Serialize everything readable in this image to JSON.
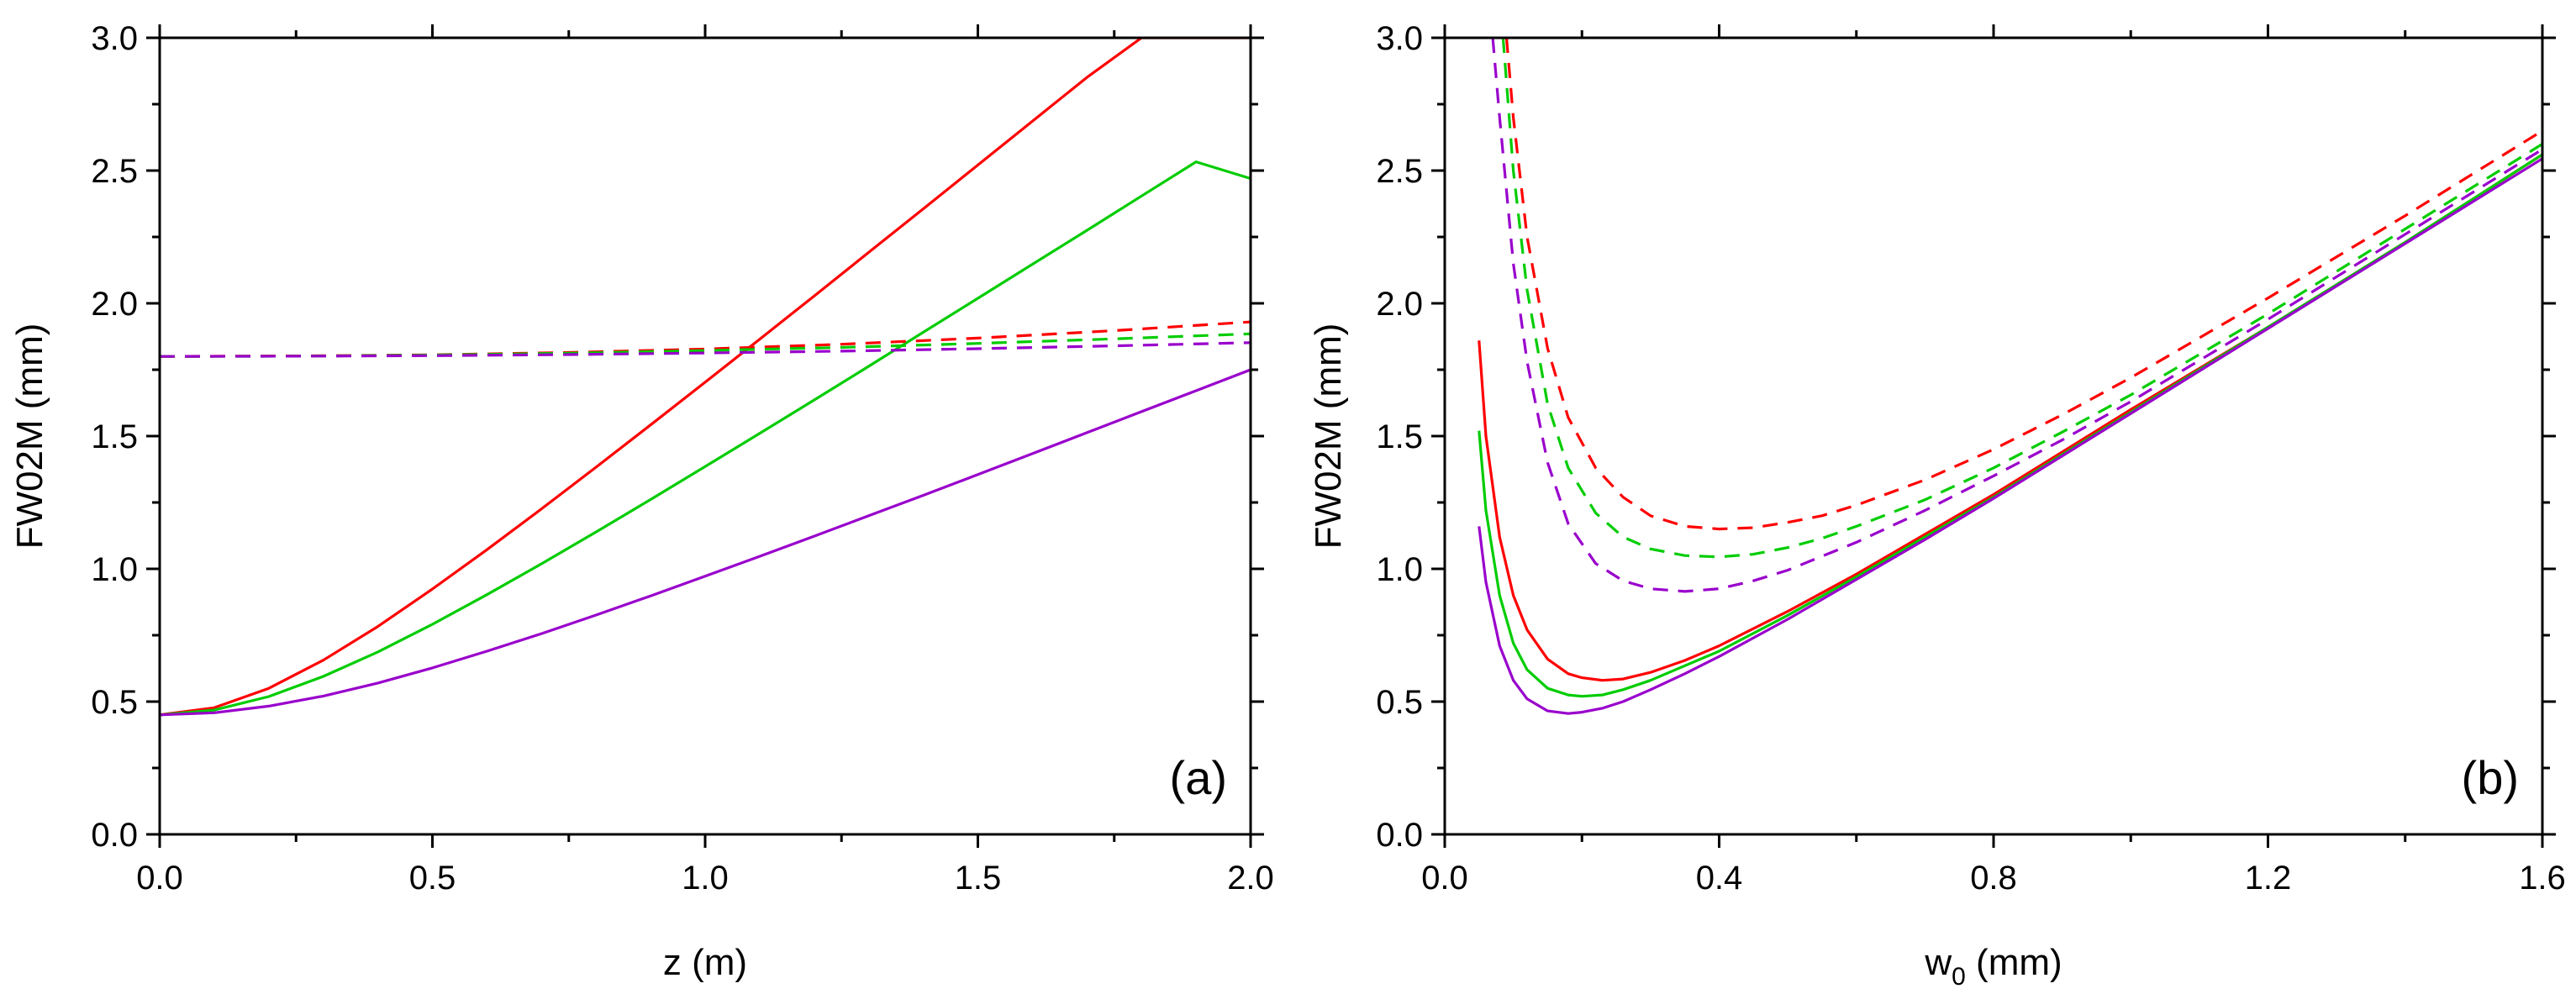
{
  "chart_data": [
    {
      "panel": "(a)",
      "type": "line",
      "xlabel": "z (m)",
      "ylabel": "FW02M (mm)",
      "xlim": [
        0,
        2.0
      ],
      "ylim": [
        0,
        3.0
      ],
      "xticks": [
        0,
        0.5,
        1.0,
        1.5,
        2.0
      ],
      "xtick_labels": [
        "0.0",
        "0.5",
        "1.0",
        "1.5",
        "2.0"
      ],
      "xminor": 0.25,
      "yticks": [
        0,
        0.5,
        1.0,
        1.5,
        2.0,
        2.5,
        3.0
      ],
      "ytick_labels": [
        "0.0",
        "0.5",
        "1.0",
        "1.5",
        "2.0",
        "2.5",
        "3.0"
      ],
      "yminor": 0.25,
      "series": [
        {
          "name": "red solid",
          "color": "#ff0000",
          "dash": "solid",
          "x": [
            0,
            0.1,
            0.2,
            0.3,
            0.4,
            0.5,
            0.6,
            0.7,
            0.8,
            0.9,
            1.0,
            1.1,
            1.2,
            1.3,
            1.4,
            1.5,
            1.6,
            1.7,
            1.8,
            1.9,
            2.0
          ],
          "y": [
            0.45,
            0.477,
            0.55,
            0.656,
            0.783,
            0.924,
            1.072,
            1.226,
            1.383,
            1.542,
            1.703,
            1.865,
            2.028,
            2.192,
            2.356,
            2.521,
            2.686,
            2.851,
            3.0,
            3.0,
            3.0
          ]
        },
        {
          "name": "green solid",
          "color": "#00cc00",
          "dash": "solid",
          "x": [
            0,
            0.1,
            0.2,
            0.3,
            0.4,
            0.5,
            0.6,
            0.7,
            0.8,
            0.9,
            1.0,
            1.1,
            1.2,
            1.3,
            1.4,
            1.5,
            1.6,
            1.7,
            1.8,
            1.9,
            2.0
          ],
          "y": [
            0.45,
            0.468,
            0.519,
            0.595,
            0.687,
            0.791,
            0.903,
            1.019,
            1.139,
            1.261,
            1.385,
            1.51,
            1.636,
            1.763,
            1.891,
            2.019,
            2.147,
            2.275,
            2.404,
            2.533,
            2.47
          ]
        },
        {
          "name": "purple solid",
          "color": "#9900cc",
          "dash": "solid",
          "x": [
            0,
            0.1,
            0.2,
            0.3,
            0.4,
            0.5,
            0.6,
            0.7,
            0.8,
            0.9,
            1.0,
            1.1,
            1.2,
            1.3,
            1.4,
            1.5,
            1.6,
            1.7,
            1.8,
            1.9,
            2.0
          ],
          "y": [
            0.45,
            0.458,
            0.483,
            0.521,
            0.57,
            0.627,
            0.69,
            0.756,
            0.826,
            0.898,
            0.972,
            1.047,
            1.123,
            1.2,
            1.277,
            1.355,
            1.434,
            1.513,
            1.592,
            1.671,
            1.75
          ]
        },
        {
          "name": "red dashed",
          "color": "#ff0000",
          "dash": "dashed",
          "x": [
            0,
            0.25,
            0.5,
            0.75,
            1.0,
            1.25,
            1.5,
            1.75,
            2.0
          ],
          "y": [
            1.8,
            1.802,
            1.806,
            1.815,
            1.828,
            1.846,
            1.869,
            1.897,
            1.93
          ]
        },
        {
          "name": "green dashed",
          "color": "#00cc00",
          "dash": "dashed",
          "x": [
            0,
            0.25,
            0.5,
            0.75,
            1.0,
            1.25,
            1.5,
            1.75,
            2.0
          ],
          "y": [
            1.8,
            1.801,
            1.805,
            1.812,
            1.822,
            1.834,
            1.849,
            1.866,
            1.885
          ]
        },
        {
          "name": "purple dashed",
          "color": "#9900cc",
          "dash": "dashed",
          "x": [
            0,
            0.25,
            0.5,
            0.75,
            1.0,
            1.25,
            1.5,
            1.75,
            2.0
          ],
          "y": [
            1.8,
            1.801,
            1.803,
            1.807,
            1.813,
            1.82,
            1.829,
            1.84,
            1.852
          ]
        }
      ]
    },
    {
      "panel": "(b)",
      "type": "line",
      "xlabel_main": "w",
      "xlabel_sub": "0",
      "xlabel_unit": " (mm)",
      "ylabel": "FW02M (mm)",
      "xlim": [
        0,
        1.6
      ],
      "ylim": [
        0,
        3.0
      ],
      "xticks": [
        0,
        0.4,
        0.8,
        1.2,
        1.6
      ],
      "xtick_labels": [
        "0.0",
        "0.4",
        "0.8",
        "1.2",
        "1.6"
      ],
      "xminor": 0.2,
      "yticks": [
        0,
        0.5,
        1.0,
        1.5,
        2.0,
        2.5,
        3.0
      ],
      "ytick_labels": [
        "0.0",
        "0.5",
        "1.0",
        "1.5",
        "2.0",
        "2.5",
        "3.0"
      ],
      "yminor": 0.25,
      "series": [
        {
          "name": "red solid",
          "color": "#ff0000",
          "dash": "solid",
          "x": [
            0.05,
            0.06,
            0.08,
            0.1,
            0.12,
            0.15,
            0.18,
            0.2,
            0.23,
            0.26,
            0.3,
            0.35,
            0.4,
            0.5,
            0.6,
            0.7,
            0.8,
            1.0,
            1.2,
            1.4,
            1.6
          ],
          "y": [
            1.86,
            1.5,
            1.12,
            0.9,
            0.77,
            0.66,
            0.605,
            0.59,
            0.58,
            0.585,
            0.61,
            0.655,
            0.71,
            0.84,
            0.98,
            1.13,
            1.28,
            1.6,
            1.91,
            2.23,
            2.56
          ]
        },
        {
          "name": "green solid",
          "color": "#00cc00",
          "dash": "solid",
          "x": [
            0.05,
            0.06,
            0.08,
            0.1,
            0.12,
            0.15,
            0.18,
            0.2,
            0.23,
            0.26,
            0.3,
            0.35,
            0.4,
            0.5,
            0.6,
            0.7,
            0.8,
            1.0,
            1.2,
            1.4,
            1.6
          ],
          "y": [
            1.52,
            1.22,
            0.9,
            0.72,
            0.62,
            0.55,
            0.525,
            0.52,
            0.525,
            0.545,
            0.58,
            0.635,
            0.69,
            0.825,
            0.97,
            1.12,
            1.27,
            1.59,
            1.91,
            2.23,
            2.56
          ]
        },
        {
          "name": "purple solid",
          "color": "#9900cc",
          "dash": "solid",
          "x": [
            0.05,
            0.06,
            0.08,
            0.1,
            0.12,
            0.15,
            0.18,
            0.2,
            0.23,
            0.26,
            0.3,
            0.35,
            0.4,
            0.5,
            0.6,
            0.7,
            0.8,
            1.0,
            1.2,
            1.4,
            1.6
          ],
          "y": [
            1.16,
            0.95,
            0.71,
            0.58,
            0.51,
            0.465,
            0.455,
            0.46,
            0.475,
            0.5,
            0.545,
            0.605,
            0.67,
            0.81,
            0.96,
            1.11,
            1.265,
            1.585,
            1.905,
            2.225,
            2.545
          ]
        },
        {
          "name": "red dashed",
          "color": "#ff0000",
          "dash": "dashed",
          "x": [
            0.09,
            0.1,
            0.12,
            0.15,
            0.18,
            0.22,
            0.26,
            0.3,
            0.35,
            0.4,
            0.45,
            0.5,
            0.55,
            0.6,
            0.7,
            0.8,
            0.9,
            1.0,
            1.2,
            1.4,
            1.6
          ],
          "y": [
            3.0,
            2.7,
            2.25,
            1.83,
            1.57,
            1.38,
            1.27,
            1.2,
            1.16,
            1.15,
            1.155,
            1.175,
            1.2,
            1.24,
            1.335,
            1.45,
            1.58,
            1.72,
            2.02,
            2.33,
            2.65
          ]
        },
        {
          "name": "green dashed",
          "color": "#00cc00",
          "dash": "dashed",
          "x": [
            0.085,
            0.1,
            0.12,
            0.15,
            0.18,
            0.22,
            0.26,
            0.3,
            0.35,
            0.4,
            0.45,
            0.5,
            0.55,
            0.6,
            0.7,
            0.8,
            0.9,
            1.0,
            1.2,
            1.4,
            1.6
          ],
          "y": [
            3.0,
            2.5,
            2.05,
            1.62,
            1.38,
            1.21,
            1.12,
            1.075,
            1.05,
            1.045,
            1.055,
            1.08,
            1.115,
            1.16,
            1.26,
            1.38,
            1.515,
            1.655,
            1.96,
            2.28,
            2.6
          ]
        },
        {
          "name": "purple dashed",
          "color": "#9900cc",
          "dash": "dashed",
          "x": [
            0.07,
            0.08,
            0.1,
            0.12,
            0.15,
            0.18,
            0.22,
            0.26,
            0.3,
            0.35,
            0.4,
            0.45,
            0.5,
            0.6,
            0.7,
            0.8,
            0.9,
            1.0,
            1.2,
            1.4,
            1.6
          ],
          "y": [
            3.0,
            2.7,
            2.15,
            1.78,
            1.4,
            1.17,
            1.02,
            0.955,
            0.925,
            0.915,
            0.925,
            0.955,
            0.995,
            1.1,
            1.22,
            1.35,
            1.485,
            1.63,
            1.94,
            2.26,
            2.58
          ]
        }
      ]
    }
  ]
}
